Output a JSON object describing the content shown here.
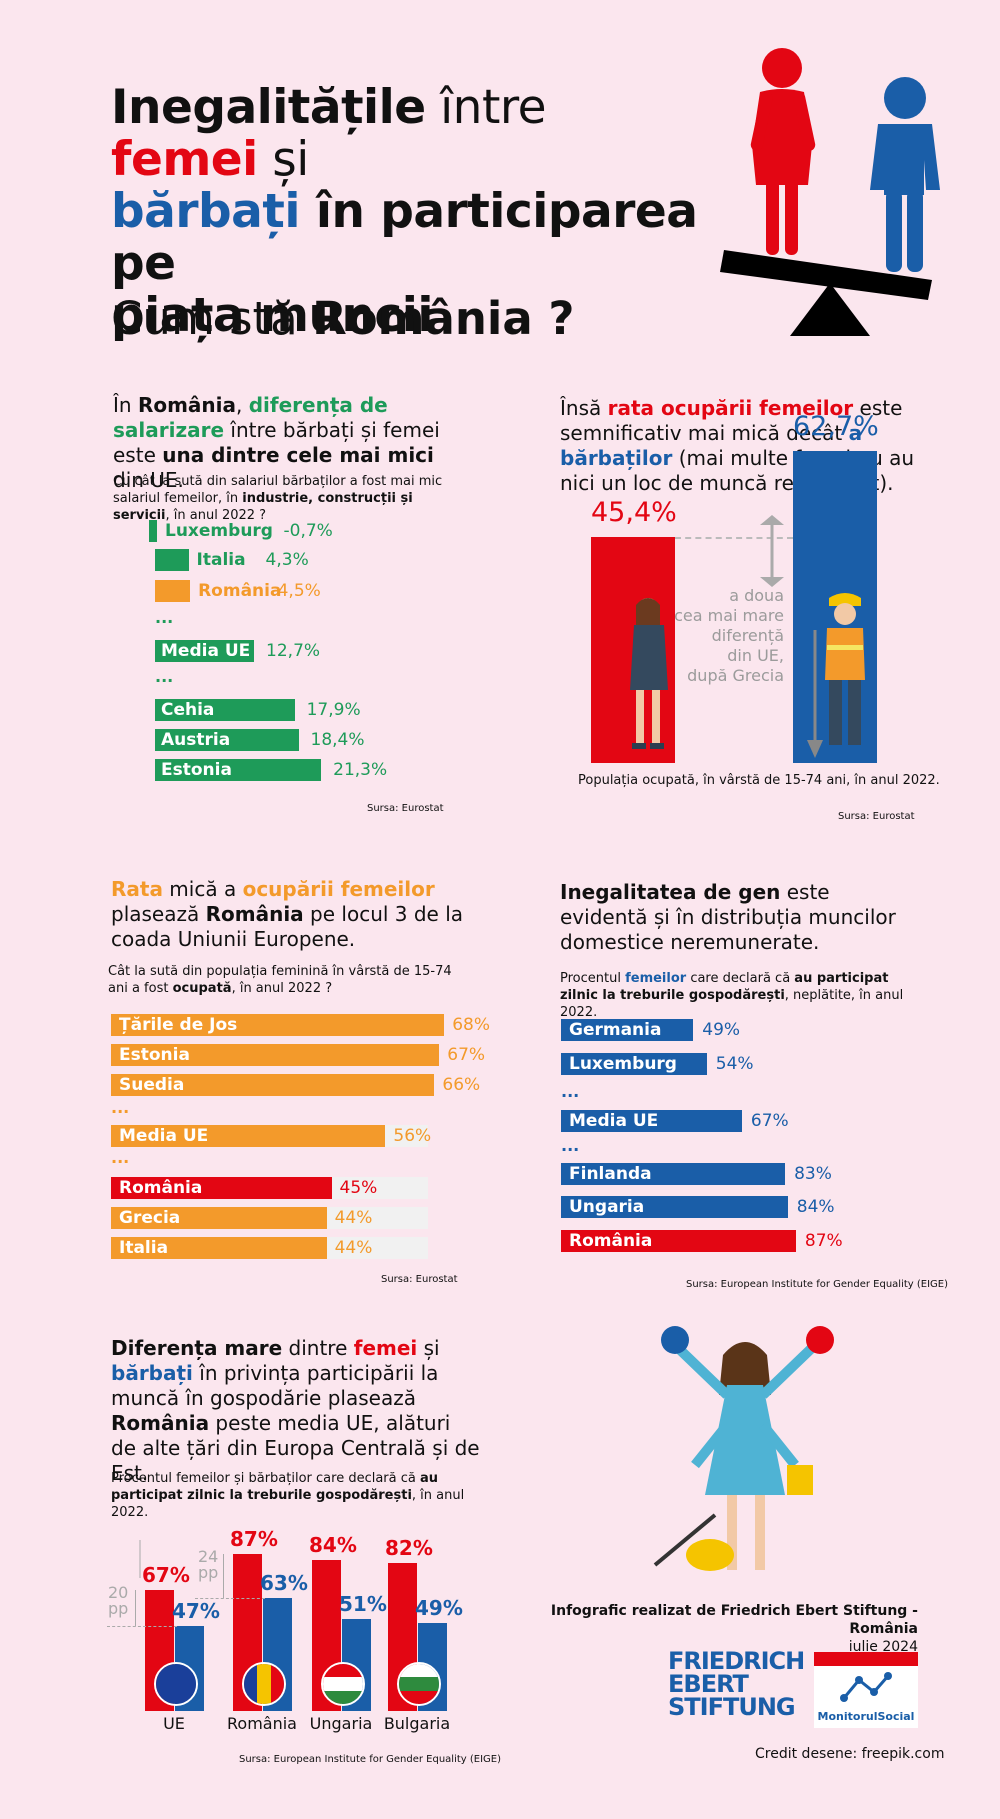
{
  "title": {
    "line1_a": "Inegalitățile",
    "line1_b": " între ",
    "line1_c": "femei",
    "line1_d": " și",
    "line2_a": "bărbați",
    "line2_b": " în participarea pe",
    "line3": "piața muncii"
  },
  "subtitle": {
    "a": "Cum stă ",
    "b": "România ?"
  },
  "colors": {
    "bg": "#fbe6ee",
    "green": "#1e9b59",
    "orange": "#f39a2b",
    "red": "#e30613",
    "blue": "#1a5ea8"
  },
  "section1": {
    "p1": "În ",
    "p2": "România",
    "p3": ", ",
    "p4": "diferența de salarizare",
    "p5": " între bărbați și femei este ",
    "p6": "una dintre cele mai mici",
    "p7": " din UE.",
    "q1": "Cu cât la sută din salariul bărbaților a fost mai mic salariul femeilor, în ",
    "q2": "industrie, construcții și servicii",
    "q3": ", în anul 2022 ?",
    "ellipsis": "...",
    "source": "Sursa: Eurostat"
  },
  "section2": {
    "p1": "Însă ",
    "p2": "rata ocupării femeilor",
    "p3": " este semnificativ mai mică decât ",
    "p4": "a bărbaților",
    "p5": " (mai multe femei nu au nici un loc de muncă remunerat).",
    "note_l1": "a doua",
    "note_l2": "cea mai mare",
    "note_l3": "diferență",
    "note_l4": "din UE,",
    "note_l5": "după Grecia",
    "caption": "Populația ocupată, în vârstă de 15-74 ani, în anul 2022.",
    "source": "Sursa: Eurostat"
  },
  "section3": {
    "p1": "Rata",
    "p2": " mică a ",
    "p3": "ocupării femeilor",
    "p4": " plasează ",
    "p5": "România",
    "p6": " pe locul 3 de la coada Uniunii Europene.",
    "q1": "Cât la sută din populația feminină în vârstă de 15-74 ani a fost ",
    "q2": "ocupată",
    "q3": ", în anul 2022 ?",
    "ellipsis": "...",
    "source": "Sursa: Eurostat"
  },
  "section4": {
    "p1": "Inegalitatea de gen",
    "p2": " este evidentă și în distribuția muncilor domestice neremunerate.",
    "q1": "Procentul ",
    "q2": "femeilor",
    "q3": " care declară că ",
    "q4": "au participat zilnic la treburile gospodărești",
    "q5": ", neplătite, în anul 2022.",
    "ellipsis": "...",
    "source": "Sursa: European Institute for Gender Equality (EIGE)"
  },
  "section5": {
    "p1": "Diferența mare",
    "p2": " dintre ",
    "p3": "femei",
    "p4": " și ",
    "p5": "bărbați",
    "p6": " în privința participării la muncă în gospodărie plasează ",
    "p7": "România",
    "p8": " peste media UE, alături de alte țări din Europa Centrală și de Est.",
    "q1": "Procentul femeilor și bărbaților care declară că ",
    "q2": "au participat zilnic la treburile gospodărești",
    "q3": ", în anul 2022.",
    "gap1_a": "20",
    "gap1_b": "pp",
    "gap2_a": "24",
    "gap2_b": "pp",
    "source": "Sursa: European Institute for Gender Equality (EIGE)"
  },
  "footer": {
    "credit_line": "Infografic realizat de Friedrich Ebert Stiftung - România",
    "date": "iulie 2024",
    "fes_1": "FRIEDRICH",
    "fes_2": "EBERT",
    "fes_3": "STIFTUNG",
    "ms": "MonitorulSocial",
    "drawings": "Credit desene: freepik.com"
  },
  "chart_data": [
    {
      "type": "bar",
      "orientation": "horizontal",
      "categories": [
        "Luxemburg",
        "Italia",
        "România",
        "Media UE",
        "Cehia",
        "Austria",
        "Estonia"
      ],
      "values": [
        -0.7,
        4.3,
        4.5,
        12.7,
        17.9,
        18.4,
        21.3
      ],
      "labels": [
        "-0,7%",
        "4,3%",
        "4,5%",
        "12,7%",
        "17,9%",
        "18,4%",
        "21,3%"
      ]
    },
    {
      "type": "bar",
      "orientation": "vertical",
      "categories": [
        "Femei",
        "Bărbați"
      ],
      "values": [
        45.4,
        62.7
      ],
      "labels": [
        "45,4%",
        "62,7%"
      ]
    },
    {
      "type": "bar",
      "orientation": "horizontal",
      "categories": [
        "Țările de Jos",
        "Estonia",
        "Suedia",
        "Media UE",
        "România",
        "Grecia",
        "Italia"
      ],
      "values": [
        68,
        67,
        66,
        56,
        45,
        44,
        44
      ],
      "labels": [
        "68%",
        "67%",
        "66%",
        "56%",
        "45%",
        "44%",
        "44%"
      ]
    },
    {
      "type": "bar",
      "orientation": "horizontal",
      "categories": [
        "Germania",
        "Luxemburg",
        "Media UE",
        "Finlanda",
        "Ungaria",
        "România"
      ],
      "values": [
        49,
        54,
        67,
        83,
        84,
        87
      ],
      "labels": [
        "49%",
        "54%",
        "67%",
        "83%",
        "84%",
        "87%"
      ]
    },
    {
      "type": "bar",
      "orientation": "vertical",
      "categories": [
        "UE",
        "România",
        "Ungaria",
        "Bulgaria"
      ],
      "series": [
        {
          "values": [
            67,
            87,
            84,
            82
          ],
          "labels": [
            "67%",
            "87%",
            "84%",
            "82%"
          ]
        },
        {
          "values": [
            47,
            63,
            51,
            49
          ],
          "labels": [
            "47%",
            "63%",
            "51%",
            "49%"
          ]
        }
      ]
    }
  ]
}
